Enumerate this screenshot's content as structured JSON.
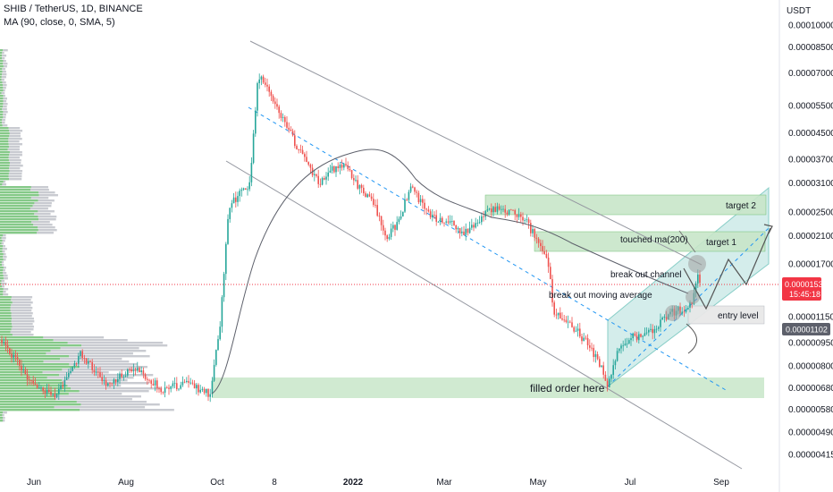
{
  "chart_data": {
    "type": "candlestick",
    "title": "SHIB / TetherUS, 1D, BINANCE",
    "indicator": "MA (90, close, 0, SMA, 5)",
    "currency": "USDT",
    "y_scale": "log",
    "ylim": [
      4.1e-06,
      1.22e-05
    ],
    "y_ticks": [
      "0.00010000",
      "0.00008500",
      "0.00007000",
      "0.00005500",
      "0.00004500",
      "0.00003700",
      "0.00003100",
      "0.00002500",
      "0.00002100",
      "0.00001700",
      "0.00001150",
      "0.00000950",
      "0.00000800",
      "0.00000680",
      "0.00000580",
      "0.00000490",
      "0.00000415"
    ],
    "x_ticks": [
      "Jun",
      "Aug",
      "Oct",
      "8",
      "2022",
      "Mar",
      "May",
      "Jul",
      "Sep"
    ],
    "current_price": "0.00001531",
    "countdown": "15:45:18",
    "ma_value": "0.00001102",
    "annotations": [
      "target 2",
      "target 1",
      "touched ma(200)",
      "break out channel",
      "break out moving average",
      "entry level",
      "filled order here"
    ],
    "colors": {
      "up": "#26a69a",
      "down": "#ef5350",
      "zone": "#c8e6c9",
      "channel": "#b2dfdb",
      "dashed": "#2196f3",
      "price_line": "#f23645",
      "ma_label": "#5d606b"
    }
  }
}
